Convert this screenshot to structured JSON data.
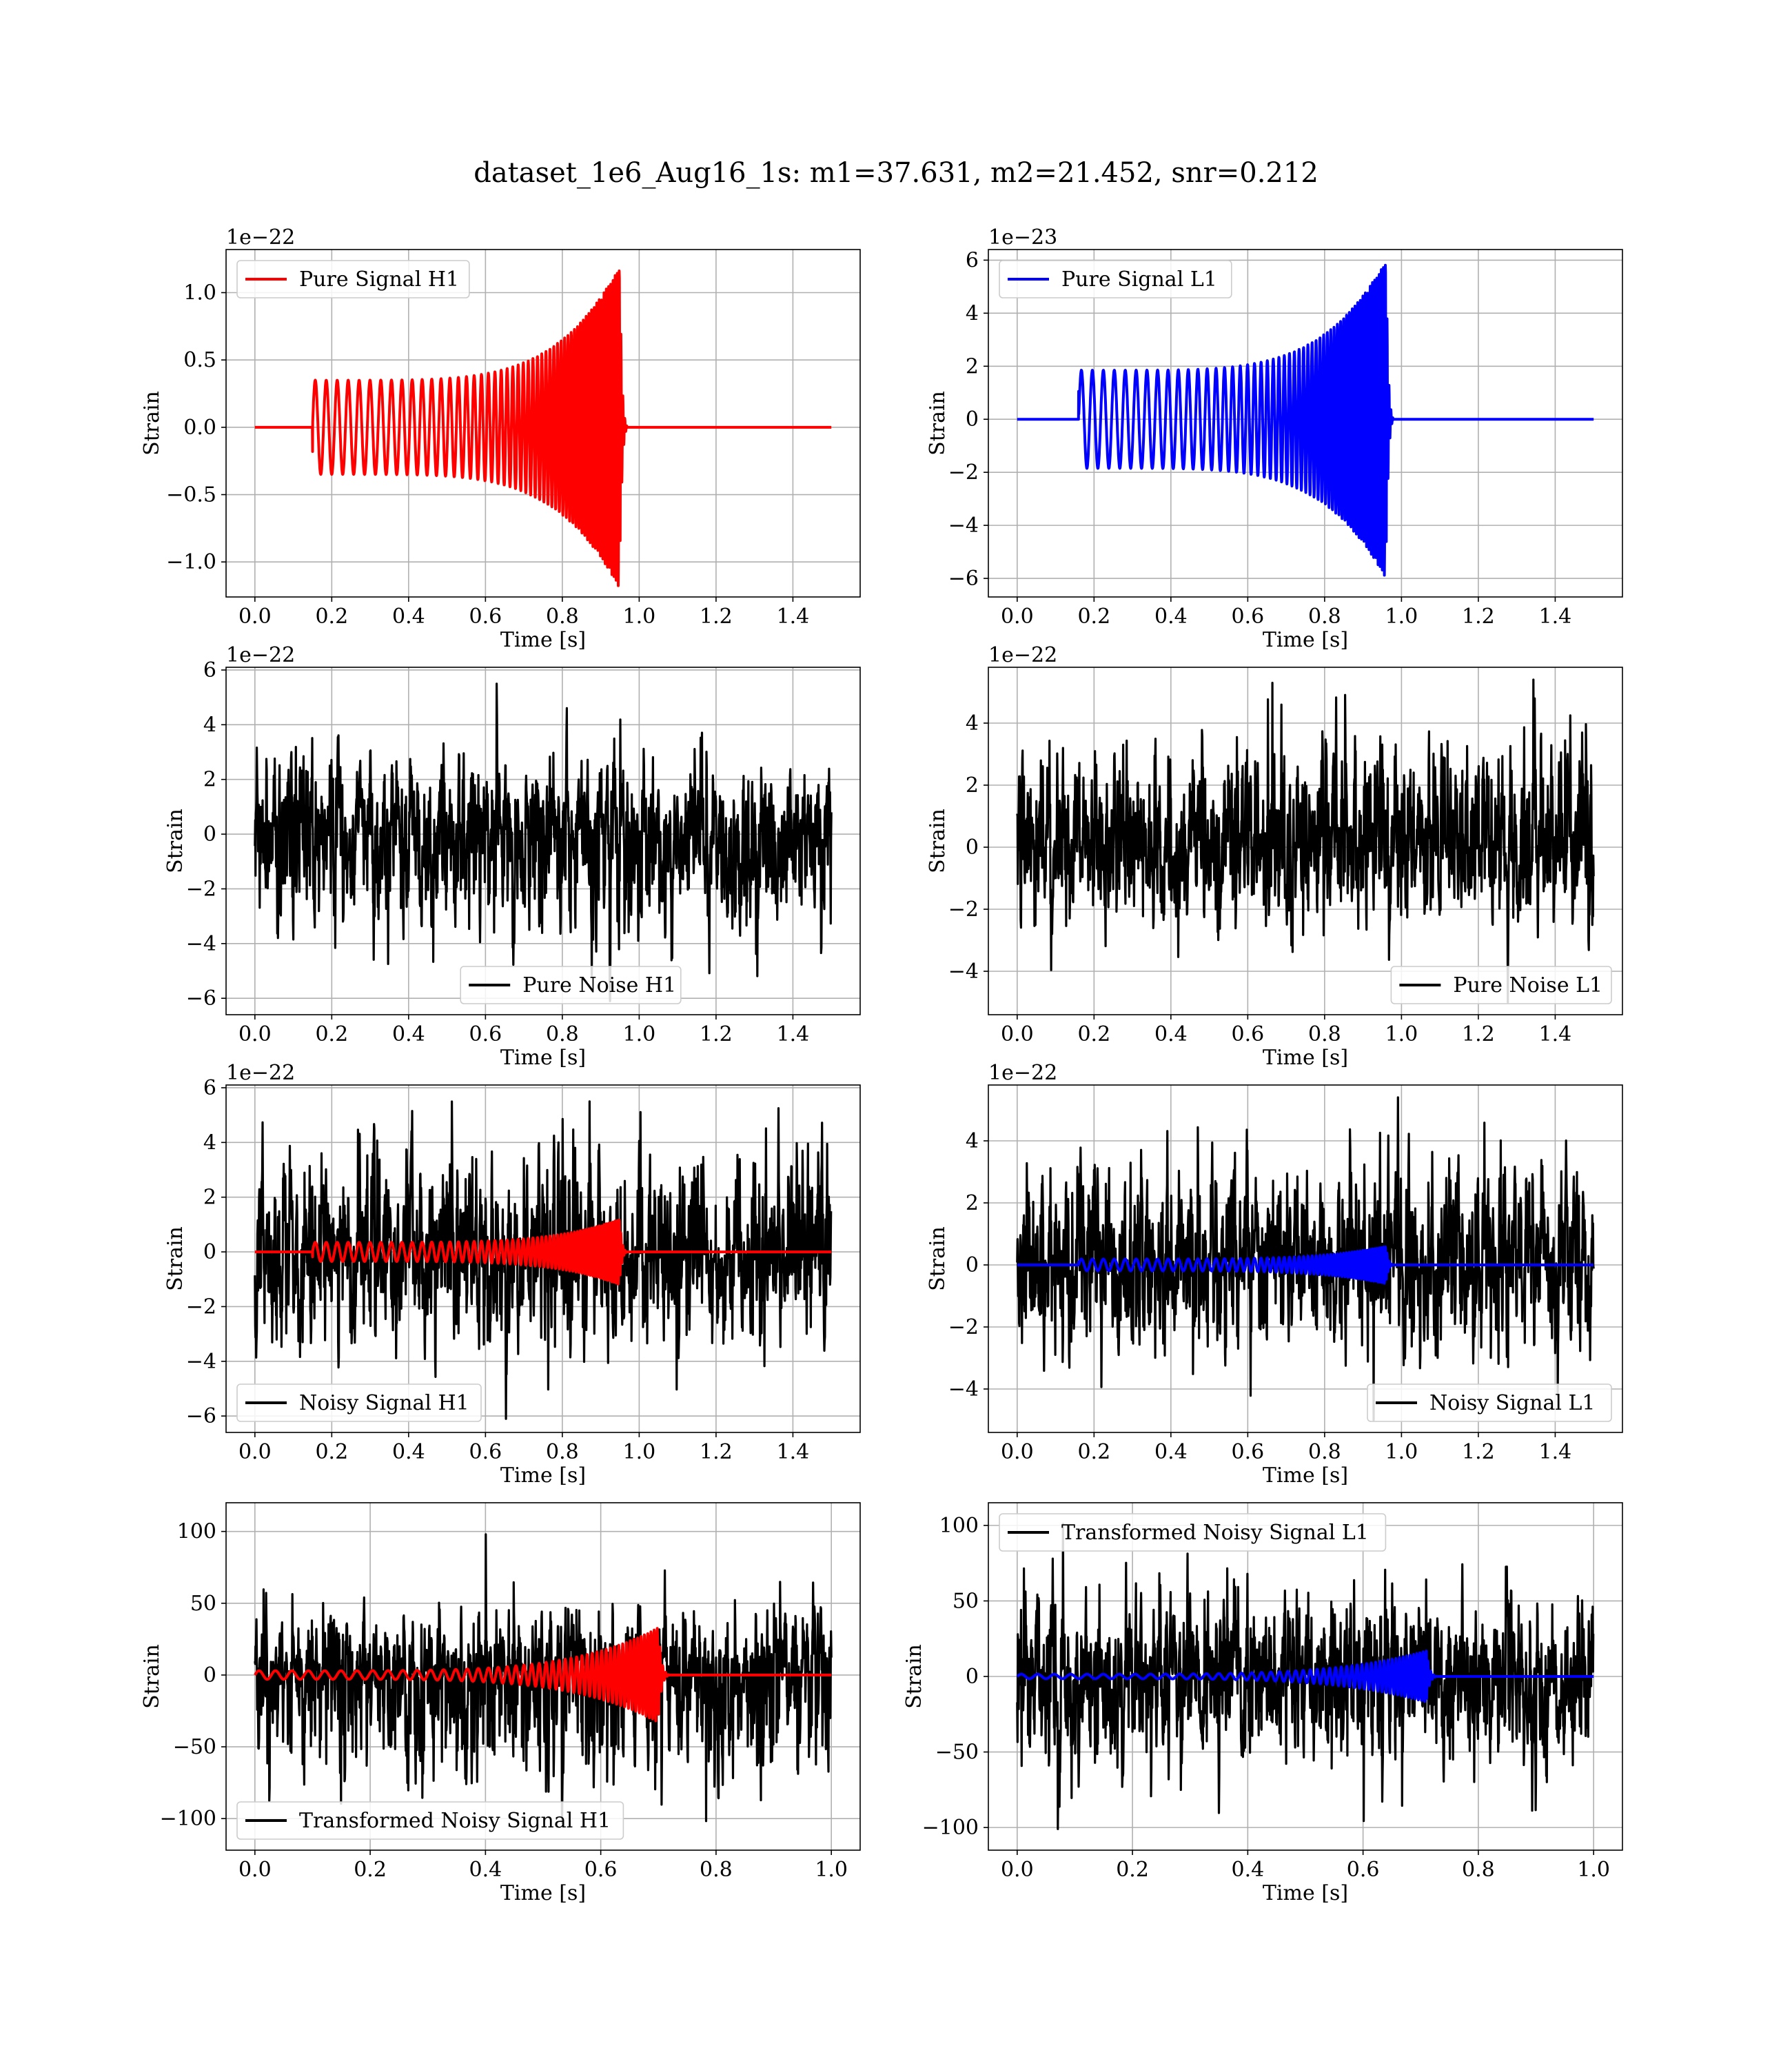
{
  "suptitle": "dataset_1e6_Aug16_1s: m1=37.631, m2=21.452, snr=0.212",
  "chart_data": [
    {
      "type": "line",
      "xlabel": "Time [s]",
      "ylabel": "Strain",
      "offset_text": "1e−22",
      "xlim": [
        -0.075,
        1.575
      ],
      "ylim": [
        -1.26,
        1.32
      ],
      "xticks": [
        0.0,
        0.2,
        0.4,
        0.6,
        0.8,
        1.0,
        1.2,
        1.4
      ],
      "xtick_labels": [
        "0.0",
        "0.2",
        "0.4",
        "0.6",
        "0.8",
        "1.0",
        "1.2",
        "1.4"
      ],
      "yticks": [
        -1.0,
        -0.5,
        0.0,
        0.5,
        1.0
      ],
      "ytick_labels": [
        "−1.0",
        "−0.5",
        "0.0",
        "0.5",
        "1.0"
      ],
      "grid": true,
      "legend_loc": "upper left",
      "series": [
        {
          "name": "Pure Signal H1",
          "color": "#ff0000",
          "kind": "chirp",
          "x_range": [
            0.0,
            1.5
          ],
          "t_start": 0.15,
          "t_merge": 0.95,
          "amp_start": 0.35,
          "amp_peak": 1.2,
          "amp_min": -1.15,
          "initial_value": -0.18
        }
      ]
    },
    {
      "type": "line",
      "xlabel": "Time [s]",
      "ylabel": "Strain",
      "offset_text": "1e−23",
      "xlim": [
        -0.075,
        1.575
      ],
      "ylim": [
        -6.7,
        6.4
      ],
      "xticks": [
        0.0,
        0.2,
        0.4,
        0.6,
        0.8,
        1.0,
        1.2,
        1.4
      ],
      "xtick_labels": [
        "0.0",
        "0.2",
        "0.4",
        "0.6",
        "0.8",
        "1.0",
        "1.2",
        "1.4"
      ],
      "yticks": [
        -6,
        -4,
        -2,
        0,
        2,
        4,
        6
      ],
      "ytick_labels": [
        "−6",
        "−4",
        "−2",
        "0",
        "2",
        "4",
        "6"
      ],
      "grid": true,
      "legend_loc": "upper left",
      "series": [
        {
          "name": "Pure Signal L1",
          "color": "#0000ff",
          "kind": "chirp",
          "x_range": [
            0.0,
            1.5
          ],
          "t_start": 0.16,
          "t_merge": 0.96,
          "amp_start": 1.85,
          "amp_peak": 6.0,
          "amp_min": -6.3,
          "initial_value": 1.05
        }
      ]
    },
    {
      "type": "line",
      "xlabel": "Time [s]",
      "ylabel": "Strain",
      "offset_text": "1e−22",
      "xlim": [
        -0.075,
        1.575
      ],
      "ylim": [
        -6.6,
        6.1
      ],
      "xticks": [
        0.0,
        0.2,
        0.4,
        0.6,
        0.8,
        1.0,
        1.2,
        1.4
      ],
      "xtick_labels": [
        "0.0",
        "0.2",
        "0.4",
        "0.6",
        "0.8",
        "1.0",
        "1.2",
        "1.4"
      ],
      "yticks": [
        -6,
        -4,
        -2,
        0,
        2,
        4,
        6
      ],
      "ytick_labels": [
        "−6",
        "−4",
        "−2",
        "0",
        "2",
        "4",
        "6"
      ],
      "grid": true,
      "legend_loc": "lower center",
      "series": [
        {
          "name": "Pure Noise H1",
          "color": "#000000",
          "kind": "noise",
          "x_range": [
            0.0,
            1.5
          ],
          "max": 5.5,
          "min": -6.1
        }
      ]
    },
    {
      "type": "line",
      "xlabel": "Time [s]",
      "ylabel": "Strain",
      "offset_text": "1e−22",
      "xlim": [
        -0.075,
        1.575
      ],
      "ylim": [
        -5.4,
        5.8
      ],
      "xticks": [
        0.0,
        0.2,
        0.4,
        0.6,
        0.8,
        1.0,
        1.2,
        1.4
      ],
      "xtick_labels": [
        "0.0",
        "0.2",
        "0.4",
        "0.6",
        "0.8",
        "1.0",
        "1.2",
        "1.4"
      ],
      "yticks": [
        -4,
        -2,
        0,
        2,
        4
      ],
      "ytick_labels": [
        "−4",
        "−2",
        "0",
        "2",
        "4"
      ],
      "grid": true,
      "legend_loc": "lower right",
      "series": [
        {
          "name": "Pure Noise L1",
          "color": "#000000",
          "kind": "noise",
          "x_range": [
            0.0,
            1.5
          ],
          "max": 5.4,
          "min": -5.0
        }
      ]
    },
    {
      "type": "line",
      "xlabel": "Time [s]",
      "ylabel": "Strain",
      "offset_text": "1e−22",
      "xlim": [
        -0.075,
        1.575
      ],
      "ylim": [
        -6.6,
        6.1
      ],
      "xticks": [
        0.0,
        0.2,
        0.4,
        0.6,
        0.8,
        1.0,
        1.2,
        1.4
      ],
      "xtick_labels": [
        "0.0",
        "0.2",
        "0.4",
        "0.6",
        "0.8",
        "1.0",
        "1.2",
        "1.4"
      ],
      "yticks": [
        -6,
        -4,
        -2,
        0,
        2,
        4,
        6
      ],
      "ytick_labels": [
        "−6",
        "−4",
        "−2",
        "0",
        "2",
        "4",
        "6"
      ],
      "grid": true,
      "legend_loc": "lower left",
      "series": [
        {
          "name": "Noisy Signal H1",
          "color": "#000000",
          "kind": "noise",
          "x_range": [
            0.0,
            1.5
          ],
          "max": 5.5,
          "min": -6.1
        },
        {
          "color": "#ff0000",
          "kind": "chirp",
          "x_range": [
            0.0,
            1.5
          ],
          "t_start": 0.15,
          "t_merge": 0.95,
          "amp_start": 0.35,
          "amp_peak": 1.2,
          "amp_min": -1.15,
          "initial_value": -0.18
        }
      ]
    },
    {
      "type": "line",
      "xlabel": "Time [s]",
      "ylabel": "Strain",
      "offset_text": "1e−22",
      "xlim": [
        -0.075,
        1.575
      ],
      "ylim": [
        -5.4,
        5.8
      ],
      "xticks": [
        0.0,
        0.2,
        0.4,
        0.6,
        0.8,
        1.0,
        1.2,
        1.4
      ],
      "xtick_labels": [
        "0.0",
        "0.2",
        "0.4",
        "0.6",
        "0.8",
        "1.0",
        "1.2",
        "1.4"
      ],
      "yticks": [
        -4,
        -2,
        0,
        2,
        4
      ],
      "ytick_labels": [
        "−4",
        "−2",
        "0",
        "2",
        "4"
      ],
      "grid": true,
      "legend_loc": "lower right",
      "series": [
        {
          "name": "Noisy Signal L1",
          "color": "#000000",
          "kind": "noise",
          "x_range": [
            0.0,
            1.5
          ],
          "max": 5.4,
          "min": -5.0
        },
        {
          "color": "#0000ff",
          "kind": "chirp",
          "x_range": [
            0.0,
            1.5
          ],
          "t_start": 0.16,
          "t_merge": 0.96,
          "amp_start": 0.19,
          "amp_peak": 0.6,
          "amp_min": -0.63,
          "initial_value": 0.1
        }
      ]
    },
    {
      "type": "line",
      "xlabel": "Time [s]",
      "ylabel": "Strain",
      "offset_text": "",
      "xlim": [
        -0.05,
        1.05
      ],
      "ylim": [
        -122,
        120
      ],
      "xticks": [
        0.0,
        0.2,
        0.4,
        0.6,
        0.8,
        1.0
      ],
      "xtick_labels": [
        "0.0",
        "0.2",
        "0.4",
        "0.6",
        "0.8",
        "1.0"
      ],
      "yticks": [
        -100,
        -50,
        0,
        50,
        100
      ],
      "ytick_labels": [
        "−100",
        "−50",
        "0",
        "50",
        "100"
      ],
      "grid": true,
      "legend_loc": "lower left",
      "series": [
        {
          "name": "Transformed Noisy Signal H1",
          "color": "#000000",
          "kind": "noise",
          "x_range": [
            0.0,
            1.0
          ],
          "max": 98,
          "min": -103
        },
        {
          "color": "#ff0000",
          "kind": "chirp",
          "x_range": [
            0.0,
            1.0
          ],
          "t_start": 0.0,
          "t_merge": 0.7,
          "amp_start": 3.0,
          "amp_peak": 33,
          "amp_min": -32,
          "initial_value": 0
        }
      ]
    },
    {
      "type": "line",
      "xlabel": "Time [s]",
      "ylabel": "Strain",
      "offset_text": "",
      "xlim": [
        -0.05,
        1.05
      ],
      "ylim": [
        -115,
        115
      ],
      "xticks": [
        0.0,
        0.2,
        0.4,
        0.6,
        0.8,
        1.0
      ],
      "xtick_labels": [
        "0.0",
        "0.2",
        "0.4",
        "0.6",
        "0.8",
        "1.0"
      ],
      "yticks": [
        -100,
        -50,
        0,
        50,
        100
      ],
      "ytick_labels": [
        "−100",
        "−50",
        "0",
        "50",
        "100"
      ],
      "grid": true,
      "legend_loc": "upper left",
      "series": [
        {
          "name": "Transformed Noisy Signal L1",
          "color": "#000000",
          "kind": "noise",
          "x_range": [
            0.0,
            1.0
          ],
          "max": 101,
          "min": -101
        },
        {
          "color": "#0000ff",
          "kind": "chirp",
          "x_range": [
            0.0,
            1.0
          ],
          "t_start": 0.0,
          "t_merge": 0.71,
          "amp_start": 1.5,
          "amp_peak": 17,
          "amp_min": -17,
          "initial_value": 0
        }
      ]
    }
  ]
}
